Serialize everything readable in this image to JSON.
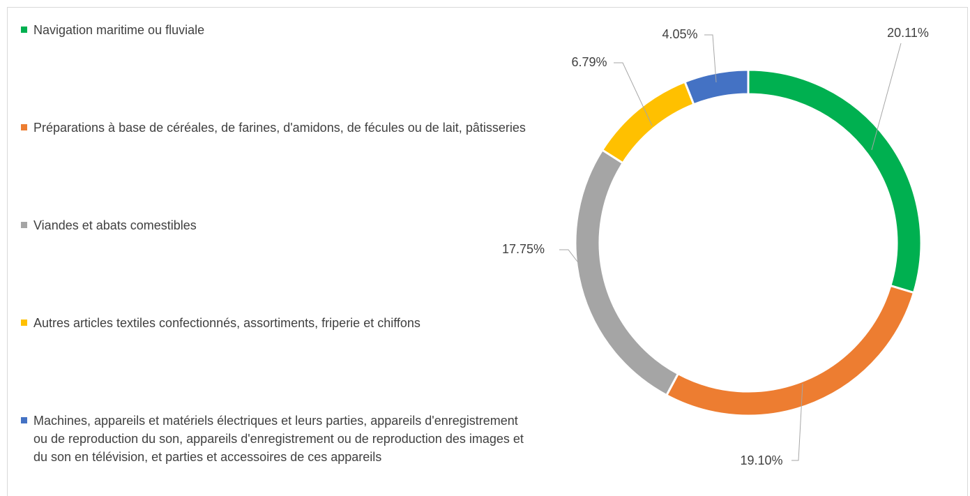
{
  "chart_data": {
    "type": "donut",
    "categories": [
      "Navigation maritime ou fluviale",
      "Préparations à base de céréales, de farines, d'amidons, de fécules ou de lait, pâtisseries",
      "Viandes et abats comestibles",
      "Autres articles textiles confectionnés, assortiments, friperie et chiffons",
      "Machines, appareils et matériels électriques et leurs parties, appareils d'enregistrement ou de reproduction du son, appareils d'enregistrement ou de reproduction des images et du son en télévision, et parties et accessoires de ces appareils"
    ],
    "values": [
      20.11,
      19.1,
      17.75,
      6.79,
      4.05
    ],
    "value_labels": [
      "20.11%",
      "19.10%",
      "17.75%",
      "6.79%",
      "4.05%"
    ],
    "colors": [
      "#00b050",
      "#ed7d31",
      "#a5a5a5",
      "#ffc000",
      "#4472c4"
    ],
    "legend": "left"
  }
}
